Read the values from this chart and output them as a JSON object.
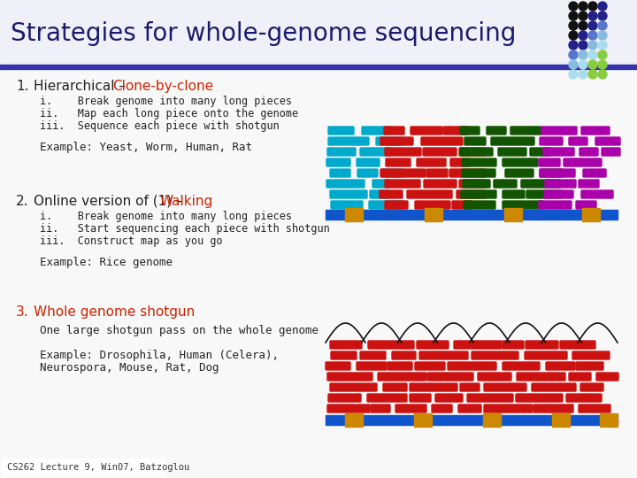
{
  "title": "Strategies for whole-genome sequencing",
  "title_color": "#1a1a6e",
  "title_fontsize": 20,
  "bg_color": "#f8f8f8",
  "header_bg_color": "#f0f0f8",
  "header_bar_color": "#3333aa",
  "footer_text": "CS262 Lecture 9, Win07, Batzoglou",
  "section1_num": "1.",
  "section1_head_black": "Hierarchical – ",
  "section1_head_red": "Clone-by-clone",
  "section1_items_i": "i.    Break genome into many long pieces",
  "section1_items_ii": "ii.   Map each long piece onto the genome",
  "section1_items_iii": "iii.  Sequence each piece with shotgun",
  "section1_example": "Example: Yeast, Worm, Human, Rat",
  "section2_num": "2.",
  "section2_head_black": "Online version of (1) – ",
  "section2_head_red": "Walking",
  "section2_items_i": "i.    Break genome into many long pieces",
  "section2_items_ii": "ii.   Start sequencing each piece with shotgun",
  "section2_items_iii": "iii.  Construct map as you go",
  "section2_example": "Example: Rice genome",
  "section3_num": "3.",
  "section3_head_red": "Whole genome shotgun",
  "section3_body": "One large shotgun pass on the whole genome",
  "section3_example1": "Example: Drosophila, Human (Celera),",
  "section3_example2": "Neurospora, Mouse, Rat, Dog",
  "red_color": "#cc2200",
  "text_color": "#222222",
  "chrom_color": "#1155cc",
  "marker_color": "#cc8800",
  "cyan_color": "#00aacc",
  "dark_green_color": "#115500",
  "magenta_color": "#aa00aa",
  "shotgun_red": "#cc1111",
  "arc_color": "#111111"
}
